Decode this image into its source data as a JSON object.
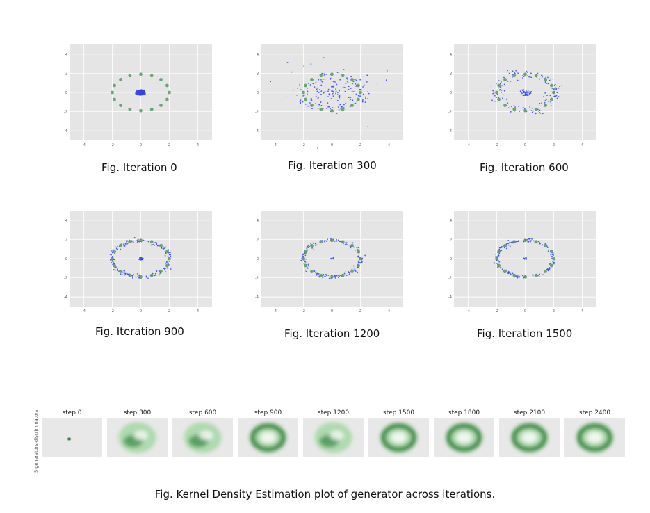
{
  "chart_data": [
    {
      "type": "scatter",
      "caption": "Fig. Iteration 0",
      "xlim": [
        -5,
        5
      ],
      "ylim": [
        -5,
        5
      ],
      "xticks": [
        "-4",
        "-2",
        "0",
        "2",
        "4"
      ],
      "yticks": [
        "4",
        "2",
        "0",
        "-2",
        "-4"
      ],
      "series": [
        {
          "role": "real-modes",
          "color": "#5aa06a",
          "ring_radius_x": 2.0,
          "ring_radius_y": 1.9,
          "count": 16
        },
        {
          "role": "generated",
          "color": "#3344ee",
          "spread": 0.25,
          "ring_fraction": 0.0,
          "count": 60
        }
      ]
    },
    {
      "type": "scatter",
      "caption": "Fig. Iteration 300",
      "xlim": [
        -5,
        5
      ],
      "ylim": [
        -5,
        5
      ],
      "xticks": [
        "-4",
        "-2",
        "0",
        "2",
        "4"
      ],
      "yticks": [
        "4",
        "2",
        "0",
        "-2",
        "-4"
      ],
      "series": [
        {
          "role": "real-modes",
          "color": "#5aa06a",
          "ring_radius_x": 2.0,
          "ring_radius_y": 1.9,
          "count": 16
        },
        {
          "role": "generated",
          "color": "#3344ee",
          "spread": 2.2,
          "ring_fraction": 0.3,
          "count": 200
        }
      ]
    },
    {
      "type": "scatter",
      "caption": "Fig. Iteration 600",
      "xlim": [
        -5,
        5
      ],
      "ylim": [
        -5,
        5
      ],
      "xticks": [
        "-4",
        "-2",
        "0",
        "2",
        "4"
      ],
      "yticks": [
        "4",
        "2",
        "0",
        "-2",
        "-4"
      ],
      "series": [
        {
          "role": "real-modes",
          "color": "#5aa06a",
          "ring_radius_x": 2.0,
          "ring_radius_y": 1.9,
          "count": 16
        },
        {
          "role": "generated",
          "color": "#3344ee",
          "spread": 0.35,
          "ring_fraction": 0.7,
          "count": 200
        }
      ]
    },
    {
      "type": "scatter",
      "caption": "Fig. Iteration 900",
      "xlim": [
        -5,
        5
      ],
      "ylim": [
        -5,
        5
      ],
      "xticks": [
        "-4",
        "-2",
        "0",
        "2",
        "4"
      ],
      "yticks": [
        "4",
        "2",
        "0",
        "-2",
        "-4"
      ],
      "series": [
        {
          "role": "real-modes",
          "color": "#5aa06a",
          "ring_radius_x": 2.0,
          "ring_radius_y": 1.9,
          "count": 16
        },
        {
          "role": "generated",
          "color": "#3344ee",
          "spread": 0.15,
          "ring_fraction": 0.9,
          "count": 200
        }
      ]
    },
    {
      "type": "scatter",
      "caption": "Fig. Iteration 1200",
      "xlim": [
        -5,
        5
      ],
      "ylim": [
        -5,
        5
      ],
      "xticks": [
        "-4",
        "-2",
        "0",
        "2",
        "4"
      ],
      "yticks": [
        "4",
        "2",
        "0",
        "-2",
        "-4"
      ],
      "series": [
        {
          "role": "real-modes",
          "color": "#5aa06a",
          "ring_radius_x": 2.0,
          "ring_radius_y": 1.9,
          "count": 16
        },
        {
          "role": "generated",
          "color": "#3344ee",
          "spread": 0.12,
          "ring_fraction": 0.95,
          "count": 200
        }
      ]
    },
    {
      "type": "scatter",
      "caption": "Fig. Iteration 1500",
      "xlim": [
        -5,
        5
      ],
      "ylim": [
        -5,
        5
      ],
      "xticks": [
        "-4",
        "-2",
        "0",
        "2",
        "4"
      ],
      "yticks": [
        "4",
        "2",
        "0",
        "-2",
        "-4"
      ],
      "series": [
        {
          "role": "real-modes",
          "color": "#5aa06a",
          "ring_radius_x": 2.0,
          "ring_radius_y": 1.9,
          "count": 16
        },
        {
          "role": "generated",
          "color": "#3344ee",
          "spread": 0.1,
          "ring_fraction": 0.96,
          "count": 200
        }
      ]
    },
    {
      "type": "heatmap",
      "ylabel": "5 generators-discriminators",
      "caption": "Fig. Kernel Density Estimation plot of generator across iterations.",
      "color": "#1e7a2e",
      "steps": [
        {
          "title": "step 0",
          "spread": "point"
        },
        {
          "title": "step 300",
          "spread": "blob"
        },
        {
          "title": "step 600",
          "spread": "blob"
        },
        {
          "title": "step 900",
          "spread": "ring"
        },
        {
          "title": "step 1200",
          "spread": "blob"
        },
        {
          "title": "step 1500",
          "spread": "ring"
        },
        {
          "title": "step 1800",
          "spread": "ring"
        },
        {
          "title": "step 2100",
          "spread": "ring"
        },
        {
          "title": "step 2400",
          "spread": "ring"
        }
      ]
    }
  ]
}
